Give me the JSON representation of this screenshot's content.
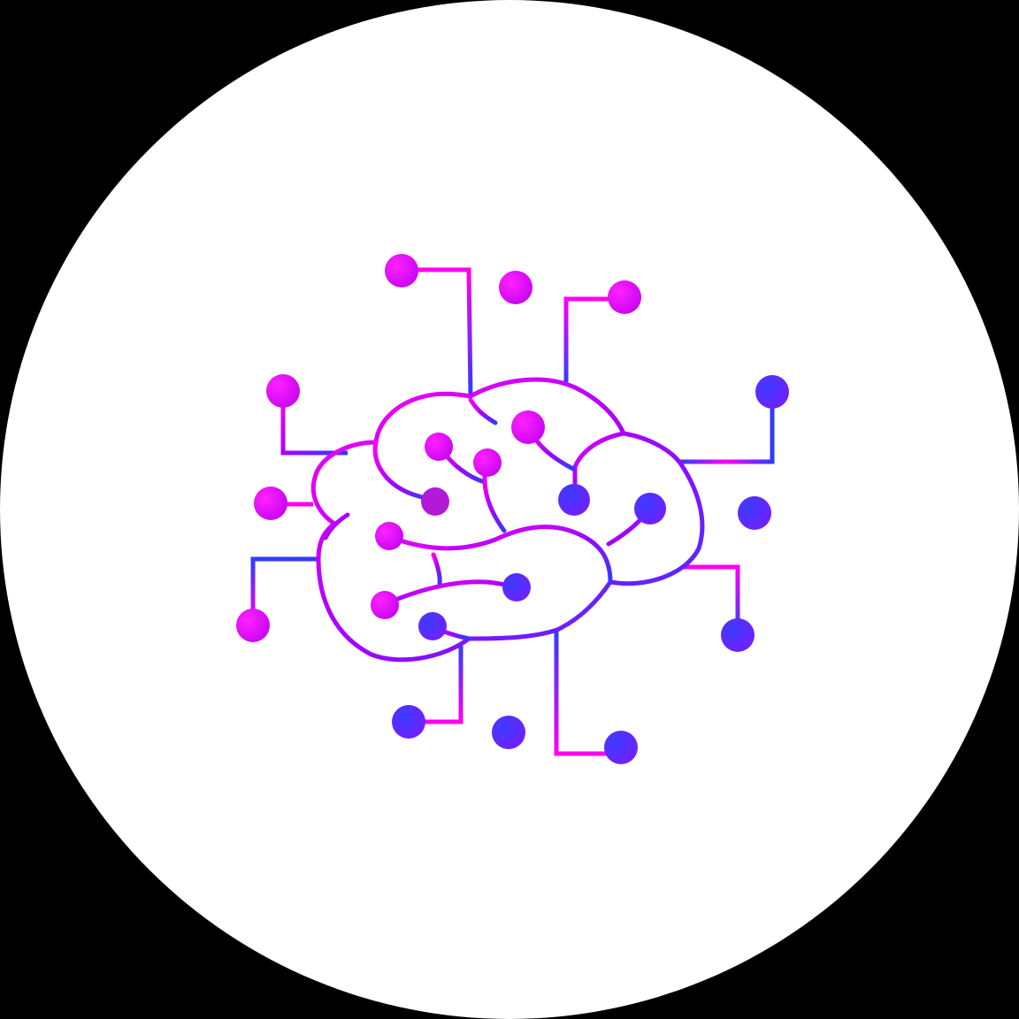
{
  "graphic": {
    "icon": "brain-circuit-icon",
    "background_color": "#000000",
    "disc_color": "#ffffff",
    "gradient_colors": [
      "#ff00f0",
      "#a800ff",
      "#2f3cff"
    ]
  }
}
